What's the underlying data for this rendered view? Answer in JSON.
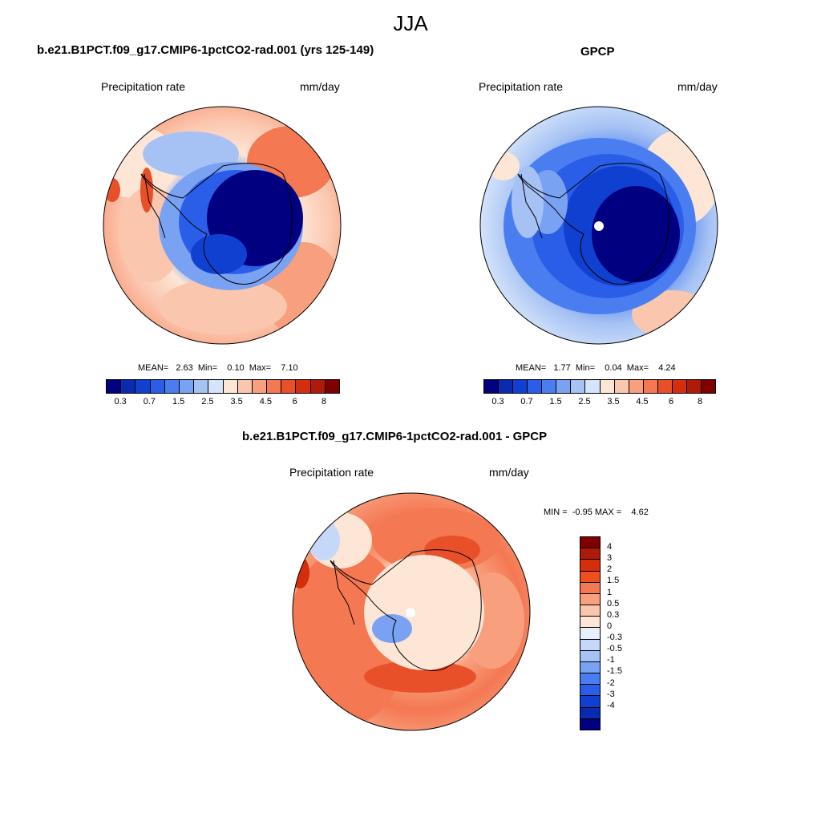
{
  "title": "JJA",
  "units_label": "mm/day",
  "variable_label": "Precipitation rate",
  "panels": {
    "model": {
      "title": "b.e21.B1PCT.f09_g17.CMIP6-1pctCO2-rad.001 (yrs 125-149)",
      "stats": "MEAN=   2.63  Min=    0.10  Max=    7.10"
    },
    "obs": {
      "title": "GPCP",
      "stats": "MEAN=   1.77  Min=    0.04  Max=    4.24"
    },
    "diff": {
      "title": "b.e21.B1PCT.f09_g17.CMIP6-1pctCO2-rad.001 - GPCP",
      "stats": "MIN =  -0.95 MAX =    4.62"
    }
  },
  "colorbar_abs": {
    "colors": [
      "#000080",
      "#0a2bb0",
      "#1040d0",
      "#2a5ee8",
      "#4a7ef0",
      "#7aa2f2",
      "#a6c2f4",
      "#d4e4fa",
      "#fde6d6",
      "#fbc6ae",
      "#f8a07e",
      "#f47852",
      "#e8502a",
      "#d42e0c",
      "#b01a08",
      "#800000"
    ],
    "tick_labels": [
      "0.3",
      "0.7",
      "1.5",
      "2.5",
      "3.5",
      "4.5",
      "6",
      "8"
    ]
  },
  "colorbar_diff": {
    "colors": [
      "#800000",
      "#b01a08",
      "#d42e0c",
      "#f0501e",
      "#f47852",
      "#f8a07e",
      "#fbc6ae",
      "#fde6d6",
      "#e8f0fc",
      "#c6d8f8",
      "#a6c2f4",
      "#7aa2f2",
      "#4a7ef0",
      "#2a5ee8",
      "#1040d0",
      "#0a2bb0",
      "#000080"
    ],
    "tick_labels": [
      "4",
      "3",
      "2",
      "1.5",
      "1",
      "0.5",
      "0.3",
      "0",
      "-0.3",
      "-0.5",
      "-1",
      "-1.5",
      "-2",
      "-3",
      "-4"
    ]
  }
}
